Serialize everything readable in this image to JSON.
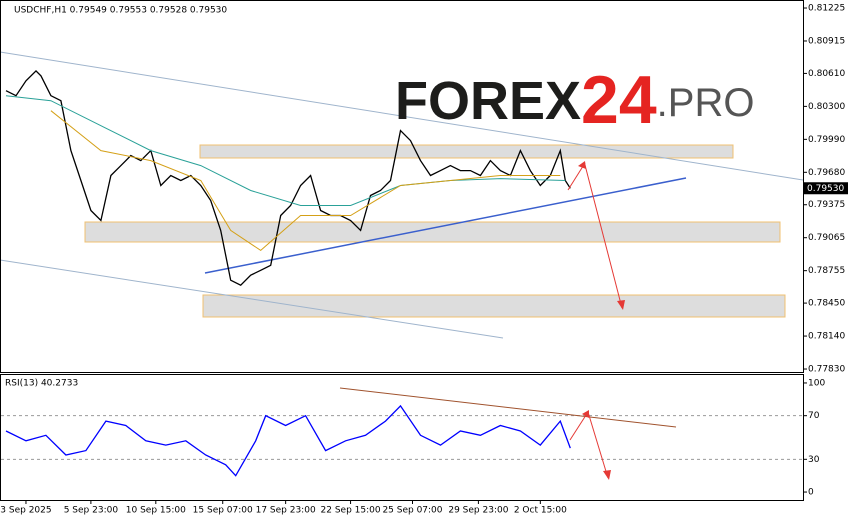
{
  "chart_data": [
    {
      "type": "line",
      "title": "USDCHF,H1  0.79549 0.79553 0.79528 0.79530",
      "logo": [
        "FOREX",
        "24",
        ".PRO"
      ],
      "series": [
        {
          "color": "#000000",
          "x": [
            5,
            15,
            25,
            35,
            40,
            50,
            60,
            70,
            80,
            90,
            100,
            110,
            120,
            130,
            140,
            150,
            160,
            170,
            180,
            190,
            200,
            210,
            220,
            230,
            240,
            250,
            260,
            270,
            280,
            290,
            300,
            310,
            320,
            330,
            340,
            350,
            360,
            370,
            380,
            390,
            400,
            410,
            420,
            430,
            440,
            450,
            460,
            470,
            480,
            490,
            500,
            510,
            520,
            530,
            540,
            550,
            560,
            565,
            570
          ],
          "values": [
            0.80447,
            0.804,
            0.80541,
            0.80634,
            0.80587,
            0.804,
            0.80353,
            0.79884,
            0.79603,
            0.79321,
            0.79227,
            0.7965,
            0.79743,
            0.79837,
            0.7979,
            0.79884,
            0.79556,
            0.7965,
            0.79603,
            0.7965,
            0.79556,
            0.79415,
            0.79134,
            0.78665,
            0.78618,
            0.78712,
            0.78758,
            0.78805,
            0.79274,
            0.79368,
            0.79556,
            0.7965,
            0.79321,
            0.79274,
            0.79274,
            0.79227,
            0.79134,
            0.79462,
            0.79509,
            0.79603,
            0.80072,
            0.79978,
            0.7979,
            0.7965,
            0.79696,
            0.79743,
            0.79696,
            0.79696,
            0.7965,
            0.7979,
            0.79696,
            0.7965,
            0.79884,
            0.79696,
            0.79556,
            0.7965,
            0.79884,
            0.79603,
            0.7953
          ]
        },
        {
          "color": "#2aa198",
          "x": [
            5,
            50,
            100,
            150,
            200,
            250,
            300,
            350,
            400,
            450,
            500,
            565
          ],
          "values": [
            0.804,
            0.80353,
            0.80118,
            0.79884,
            0.79743,
            0.79509,
            0.79368,
            0.79368,
            0.79556,
            0.79603,
            0.79621,
            0.79603
          ]
        },
        {
          "color": "#d4a017",
          "x": [
            50,
            100,
            150,
            200,
            230,
            260,
            300,
            350,
            400,
            450,
            500,
            560
          ],
          "values": [
            0.80259,
            0.79884,
            0.7979,
            0.79603,
            0.79134,
            0.78946,
            0.79274,
            0.79274,
            0.79556,
            0.79603,
            0.7965,
            0.7965
          ]
        }
      ],
      "xlim": [
        0,
        803
      ],
      "ylim": [
        0.77802,
        0.81291
      ],
      "yticks": [
        {
          "value": 0.81225,
          "label": "0.81225"
        },
        {
          "value": 0.80915,
          "label": "0.80915"
        },
        {
          "value": 0.8061,
          "label": "0.80610"
        },
        {
          "value": 0.803,
          "label": "0.80300"
        },
        {
          "value": 0.7999,
          "label": "0.79990"
        },
        {
          "value": 0.7968,
          "label": "0.79680"
        },
        {
          "value": 0.79375,
          "label": "0.79375"
        },
        {
          "value": 0.79065,
          "label": "0.79065"
        },
        {
          "value": 0.78755,
          "label": "0.78755"
        },
        {
          "value": 0.7845,
          "label": "0.78450"
        },
        {
          "value": 0.7814,
          "label": "0.78140"
        },
        {
          "value": 0.7783,
          "label": "0.77830"
        }
      ],
      "current_price": {
        "value": 0.7953,
        "label": "0.79530"
      }
    },
    {
      "type": "line",
      "title": "RSI(13) 40.2733",
      "series": [
        {
          "color": "#0000ff",
          "x": [
            5,
            25,
            45,
            65,
            85,
            105,
            125,
            145,
            165,
            185,
            205,
            225,
            235,
            255,
            265,
            285,
            305,
            325,
            345,
            365,
            385,
            400,
            420,
            440,
            460,
            480,
            500,
            520,
            540,
            560,
            570
          ],
          "values": [
            56,
            47,
            52,
            34,
            38,
            65,
            61,
            47,
            43,
            47,
            34,
            25,
            15,
            47,
            70,
            61,
            70,
            38,
            47,
            52,
            65,
            79,
            52,
            43,
            56,
            52,
            61,
            56,
            43,
            65,
            40.2733
          ]
        }
      ],
      "xlim": [
        0,
        803
      ],
      "ylim": [
        -7.3,
        107.3
      ],
      "yticks": [
        100,
        70,
        30,
        0
      ],
      "dashed_levels": [
        70,
        30
      ],
      "xticks": [
        {
          "value": 25,
          "label": "3 Sep 2025"
        },
        {
          "value": 90,
          "label": "5 Sep 23:00"
        },
        {
          "value": 155,
          "label": "10 Sep 15:00"
        },
        {
          "value": 222,
          "label": "15 Sep 07:00"
        },
        {
          "value": 285,
          "label": "17 Sep 23:00"
        },
        {
          "value": 350,
          "label": "22 Sep 15:00"
        },
        {
          "value": 412,
          "label": "25 Sep 07:00"
        },
        {
          "value": 478,
          "label": "29 Sep 23:00"
        },
        {
          "value": 540,
          "label": "2 Oct 15:00"
        }
      ]
    }
  ]
}
